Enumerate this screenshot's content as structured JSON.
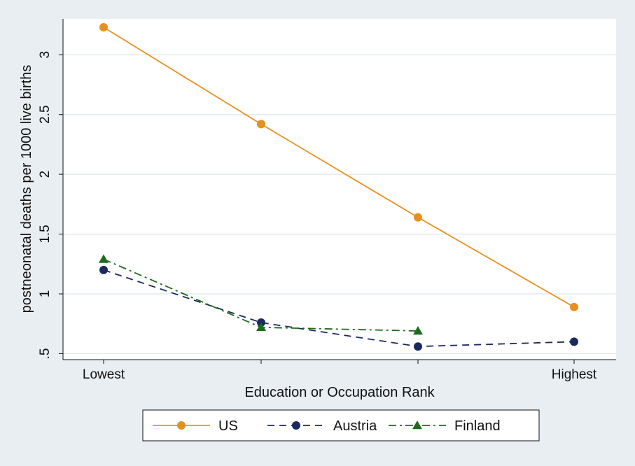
{
  "chart_data": {
    "type": "line",
    "title": "",
    "xlabel": "Education or Occupation Rank",
    "ylabel": "postneonatal deaths per 1000 live births",
    "categories": [
      "Lowest",
      "",
      "",
      "Highest"
    ],
    "yticks": [
      0.5,
      1,
      1.5,
      2,
      2.5,
      3
    ],
    "ytick_labels": [
      ".5",
      "1",
      "1.5",
      "2",
      "2.5",
      "3"
    ],
    "ylim": [
      0.45,
      3.3
    ],
    "grid": true,
    "legend_position": "bottom",
    "series": [
      {
        "name": "US",
        "values": [
          3.23,
          2.42,
          1.64,
          0.89
        ],
        "color": "#e8901e",
        "marker": "circle",
        "dash": "solid"
      },
      {
        "name": "Austria",
        "values": [
          1.2,
          0.76,
          0.56,
          0.6
        ],
        "color": "#1a2a5e",
        "marker": "circle",
        "dash": "dashed"
      },
      {
        "name": "Finland",
        "values": [
          1.29,
          0.72,
          0.69,
          null
        ],
        "color": "#1d6b1d",
        "marker": "triangle",
        "dash": "dashdot"
      }
    ]
  },
  "colors": {
    "background": "#e9eef2",
    "plot_background": "#ffffff",
    "grid": "#e3eaee"
  }
}
